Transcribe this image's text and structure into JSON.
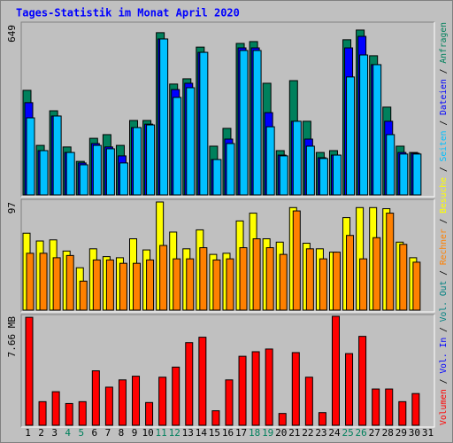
{
  "chart_data": [
    {
      "type": "bar",
      "title": "Tages-Statistik im Monat April 2020",
      "categories": [
        "1",
        "2",
        "3",
        "4",
        "5",
        "6",
        "7",
        "8",
        "9",
        "10",
        "11",
        "12",
        "13",
        "14",
        "15",
        "16",
        "17",
        "18",
        "19",
        "20",
        "21",
        "22",
        "23",
        "24",
        "25",
        "26",
        "27",
        "28",
        "29",
        "30",
        "31"
      ],
      "category_colors": [
        "#000000",
        "#000000",
        "#000000",
        "#00805c",
        "#00805c",
        "#000000",
        "#000000",
        "#000000",
        "#000000",
        "#000000",
        "#00805c",
        "#00805c",
        "#000000",
        "#000000",
        "#000000",
        "#000000",
        "#000000",
        "#00805c",
        "#00805c",
        "#000000",
        "#000000",
        "#000000",
        "#000000",
        "#000000",
        "#00805c",
        "#00805c",
        "#000000",
        "#000000",
        "#000000",
        "#000000",
        "#000000"
      ],
      "ylim": [
        0,
        649
      ],
      "yticks": [
        649
      ],
      "series": [
        {
          "name": "Anfragen",
          "color": "#00805c",
          "values": [
            399,
            189,
            321,
            183,
            128,
            216,
            230,
            189,
            284,
            284,
            619,
            423,
            443,
            564,
            186,
            254,
            578,
            585,
            426,
            169,
            436,
            281,
            162,
            169,
            592,
            629,
            531,
            335,
            186,
            162,
            null
          ]
        },
        {
          "name": "Dateien",
          "color": "#0000ff",
          "values": [
            352,
            169,
            301,
            162,
            122,
            196,
            183,
            149,
            257,
            270,
            595,
            402,
            426,
            544,
            135,
            213,
            561,
            561,
            314,
            152,
            281,
            213,
            142,
            152,
            561,
            605,
            497,
            281,
            162,
            159,
            null
          ]
        },
        {
          "name": "Seiten",
          "color": "#00c0ff",
          "values": [
            294,
            169,
            301,
            162,
            115,
            189,
            176,
            122,
            257,
            267,
            595,
            372,
            409,
            544,
            135,
            196,
            551,
            551,
            260,
            149,
            281,
            186,
            139,
            152,
            450,
            534,
            497,
            230,
            156,
            156,
            null
          ]
        }
      ]
    },
    {
      "type": "bar",
      "ylim": [
        0,
        97
      ],
      "yticks": [
        97
      ],
      "series": [
        {
          "name": "Besuche",
          "color": "#ffff00",
          "values": [
            69,
            62,
            63,
            53,
            38,
            55,
            48,
            47,
            64,
            54,
            97,
            70,
            55,
            72,
            50,
            51,
            80,
            87,
            64,
            61,
            92,
            60,
            55,
            52,
            83,
            92,
            92,
            91,
            61,
            47,
            null
          ]
        },
        {
          "name": "Rechner",
          "color": "#ff8000",
          "values": [
            51,
            51,
            47,
            49,
            26,
            45,
            45,
            42,
            42,
            45,
            58,
            46,
            46,
            56,
            45,
            46,
            56,
            64,
            56,
            50,
            89,
            55,
            46,
            52,
            67,
            46,
            65,
            87,
            59,
            43,
            null
          ]
        }
      ]
    },
    {
      "type": "bar",
      "ylim": [
        0,
        7.66
      ],
      "yticks": [
        {
          "value": 7.66,
          "label": "7.66 MB"
        }
      ],
      "series": [
        {
          "name": "Volumen",
          "color": "#ff0000",
          "values": [
            7.59,
            1.66,
            2.36,
            1.53,
            1.66,
            3.83,
            2.68,
            3.19,
            3.45,
            1.6,
            3.38,
            4.09,
            5.81,
            6.19,
            1.02,
            3.19,
            4.85,
            5.17,
            5.36,
            0.83,
            5.11,
            3.38,
            0.89,
            7.66,
            5.04,
            6.25,
            2.55,
            2.55,
            1.66,
            2.23,
            null
          ]
        }
      ],
      "extra_legend": [
        {
          "name": "Vol. In",
          "color": "#0000ff"
        },
        {
          "name": "Vol. Out",
          "color": "#008080"
        }
      ]
    }
  ],
  "legend_separator": " / "
}
